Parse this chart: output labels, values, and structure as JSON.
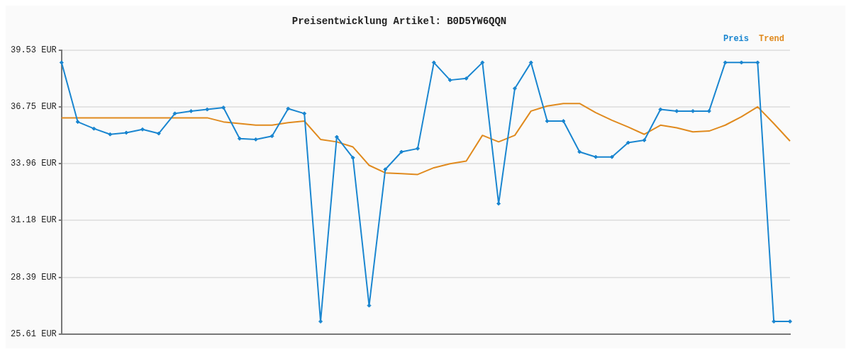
{
  "chart_data": {
    "type": "line",
    "title": "Preisentwicklung Artikel: B0D5YW6QQN",
    "categories": [
      null,
      null,
      null,
      null,
      null,
      null,
      null,
      null,
      null,
      null,
      null,
      null,
      null,
      null,
      null,
      null,
      null,
      null,
      null,
      null,
      null,
      null,
      null,
      null,
      null,
      null,
      null,
      null,
      null,
      null,
      null,
      null,
      null,
      null,
      null,
      null,
      null,
      null,
      null,
      null,
      null,
      null,
      null,
      null,
      null,
      null
    ],
    "series": [
      {
        "name": "Preis",
        "color": "#1a86d0",
        "marker": "diamond",
        "values": [
          38.92,
          36.01,
          35.68,
          35.4,
          35.48,
          35.64,
          35.44,
          36.42,
          36.54,
          36.62,
          36.71,
          35.19,
          35.15,
          35.31,
          36.66,
          36.42,
          26.22,
          35.27,
          34.25,
          27.0,
          33.68,
          34.54,
          34.7,
          38.92,
          38.06,
          38.14,
          38.92,
          32.0,
          37.65,
          38.92,
          36.05,
          36.05,
          34.54,
          34.29,
          34.29,
          34.99,
          35.11,
          36.62,
          36.54,
          36.54,
          36.54,
          38.92,
          38.92,
          38.92,
          26.22,
          26.22
        ]
      },
      {
        "name": "Trend",
        "color": "#e08a1e",
        "marker": "none",
        "values": [
          36.21,
          36.21,
          36.21,
          36.21,
          36.21,
          36.21,
          36.21,
          36.21,
          36.21,
          36.21,
          36.01,
          35.93,
          35.85,
          35.85,
          35.97,
          36.05,
          35.15,
          35.03,
          34.78,
          33.88,
          33.51,
          33.47,
          33.43,
          33.76,
          33.96,
          34.09,
          35.35,
          35.03,
          35.35,
          36.54,
          36.79,
          36.91,
          36.91,
          36.46,
          36.09,
          35.76,
          35.4,
          35.85,
          35.72,
          35.52,
          35.56,
          35.85,
          36.26,
          36.75,
          35.93,
          35.07
        ]
      }
    ],
    "ylim": [
      25.61,
      39.53
    ],
    "yticks": [
      {
        "value": 25.61,
        "label": "25.61 EUR"
      },
      {
        "value": 28.39,
        "label": "28.39 EUR"
      },
      {
        "value": 31.18,
        "label": "31.18 EUR"
      },
      {
        "value": 33.96,
        "label": "33.96 EUR"
      },
      {
        "value": 36.75,
        "label": "36.75 EUR"
      },
      {
        "value": 39.53,
        "label": "39.53 EUR"
      }
    ],
    "grid": "y",
    "legend": "top right",
    "line_style": "solid"
  }
}
